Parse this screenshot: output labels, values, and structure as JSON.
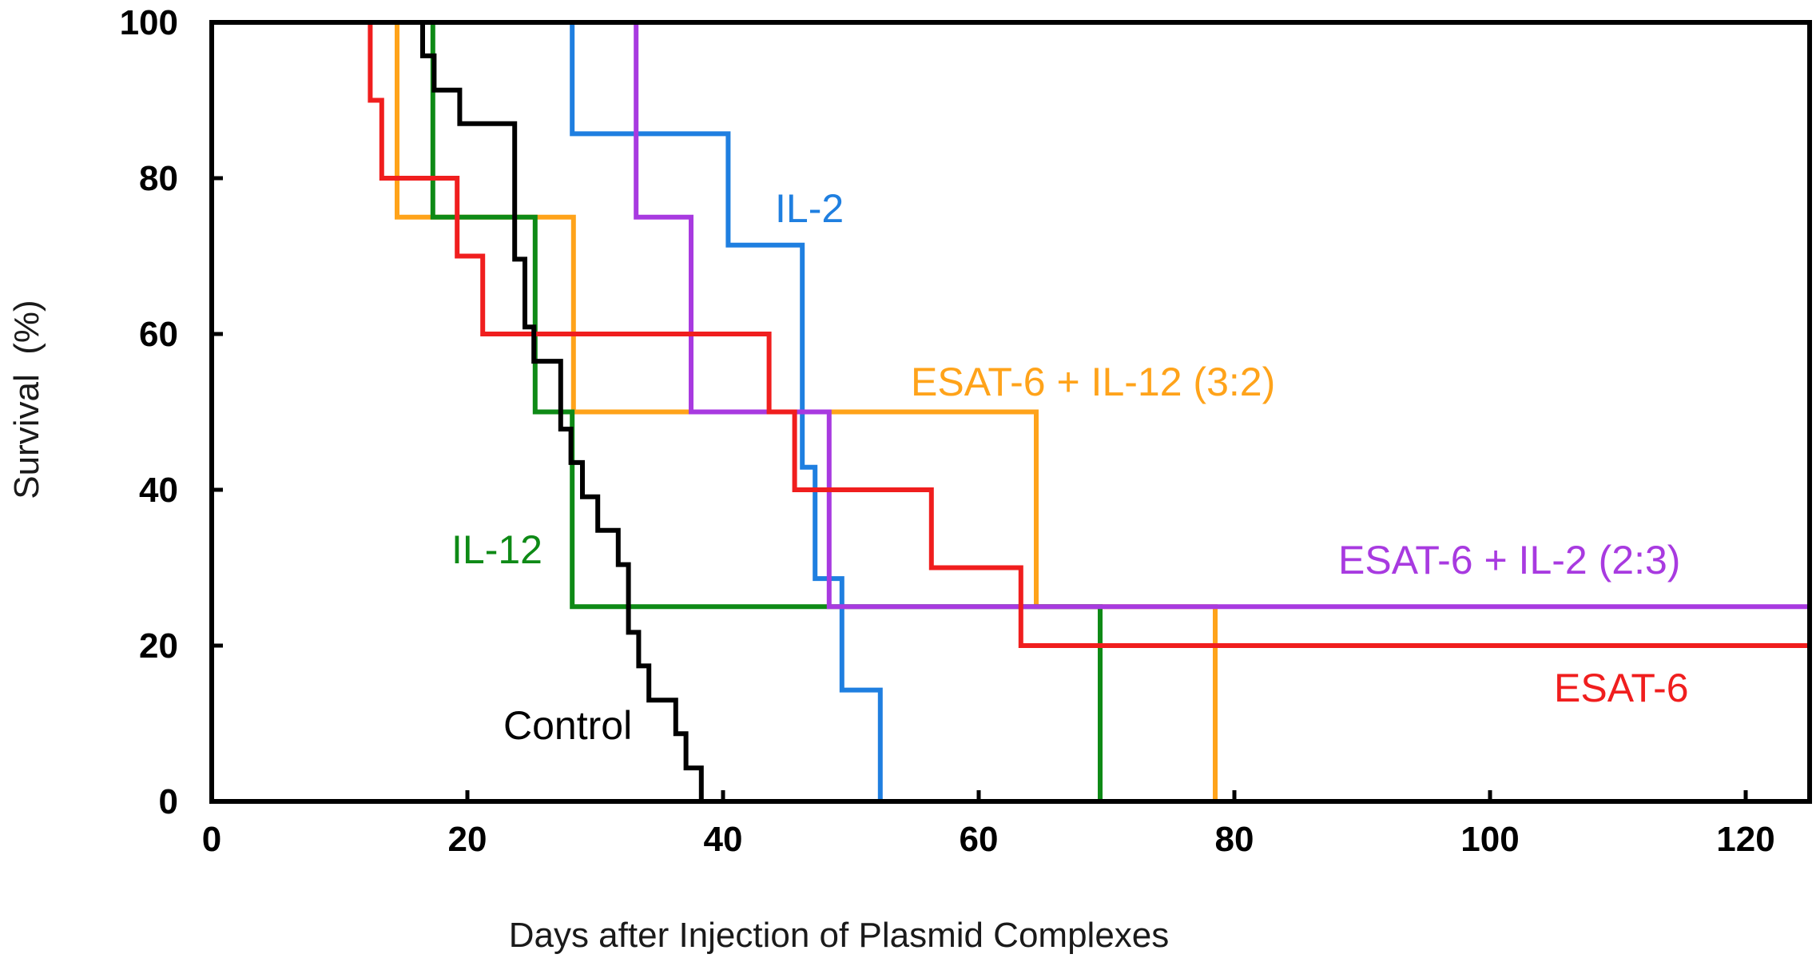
{
  "chart_data": {
    "type": "line",
    "subtype": "kaplan-meier step survival curves",
    "title": "",
    "xlabel": "Days after Injection of Plasmid Complexes",
    "ylabel": "Survival  (%)",
    "xlim": [
      0,
      125
    ],
    "ylim": [
      0,
      100
    ],
    "xticks": [
      0,
      20,
      40,
      60,
      80,
      100,
      120
    ],
    "yticks": [
      0,
      20,
      40,
      60,
      80,
      100
    ],
    "grid": false,
    "legend": "inline labels next to curves",
    "series": [
      {
        "name": "Control",
        "label": "Control",
        "color": "#000000",
        "x": [
          0,
          16.5,
          16.5,
          17.4,
          17.4,
          19.4,
          19.4,
          23.7,
          23.7,
          24.5,
          24.5,
          25.2,
          25.2,
          27.3,
          27.3,
          28.1,
          28.1,
          29.0,
          29.0,
          30.2,
          30.2,
          31.8,
          31.8,
          32.6,
          32.6,
          33.4,
          33.4,
          34.2,
          34.2,
          36.3,
          36.3,
          37.1,
          37.1,
          38.3,
          38.3,
          39.3,
          39.3
        ],
        "y": [
          100,
          100,
          95.7,
          95.7,
          91.3,
          91.3,
          87.0,
          87.0,
          69.6,
          69.6,
          60.9,
          60.9,
          56.5,
          56.5,
          47.8,
          47.8,
          43.5,
          43.5,
          39.1,
          39.1,
          34.8,
          34.8,
          30.4,
          30.4,
          21.7,
          21.7,
          17.4,
          17.4,
          13.0,
          13.0,
          8.7,
          8.7,
          4.3,
          4.3,
          0,
          0,
          0
        ]
      },
      {
        "name": "IL-12",
        "label": "IL-12",
        "color": "#0e8a16",
        "x": [
          0,
          17.3,
          17.3,
          25.3,
          25.3,
          28.2,
          28.2,
          69.5,
          69.5,
          125
        ],
        "y": [
          100,
          100,
          75,
          75,
          50,
          50,
          25,
          25,
          0,
          0
        ]
      },
      {
        "name": "IL-2",
        "label": "IL-2",
        "color": "#1f7fe0",
        "x": [
          0,
          28.2,
          28.2,
          40.4,
          40.4,
          46.2,
          46.2,
          47.2,
          47.2,
          49.3,
          49.3,
          52.3,
          52.3,
          125
        ],
        "y": [
          100,
          100,
          85.7,
          85.7,
          71.4,
          71.4,
          42.9,
          42.9,
          28.6,
          28.6,
          14.3,
          14.3,
          0,
          0
        ]
      },
      {
        "name": "ESAT-6 + IL-12 (3:2)",
        "label": "ESAT-6 + IL-12 (3:2)",
        "color": "#ffa31a",
        "x": [
          0,
          14.5,
          14.5,
          28.3,
          28.3,
          64.5,
          64.5,
          78.5,
          78.5,
          125
        ],
        "y": [
          100,
          100,
          75,
          75,
          50,
          50,
          25,
          25,
          0,
          0
        ]
      },
      {
        "name": "ESAT-6 + IL-2 (2:3)",
        "label": "ESAT-6 + IL-2 (2:3)",
        "color": "#a83ae0",
        "x": [
          0,
          33.2,
          33.2,
          37.5,
          37.5,
          48.3,
          48.3,
          125
        ],
        "y": [
          100,
          100,
          75,
          75,
          50,
          50,
          25,
          25
        ]
      },
      {
        "name": "ESAT-6",
        "label": "ESAT-6",
        "color": "#f01e1e",
        "x": [
          0,
          12.4,
          12.4,
          13.3,
          13.3,
          19.2,
          19.2,
          21.2,
          21.2,
          43.6,
          43.6,
          45.6,
          45.6,
          56.3,
          56.3,
          63.3,
          63.3,
          125
        ],
        "y": [
          100,
          100,
          90,
          90,
          80,
          80,
          70,
          70,
          60,
          60,
          50,
          50,
          40,
          40,
          30,
          30,
          20,
          20
        ]
      }
    ]
  }
}
